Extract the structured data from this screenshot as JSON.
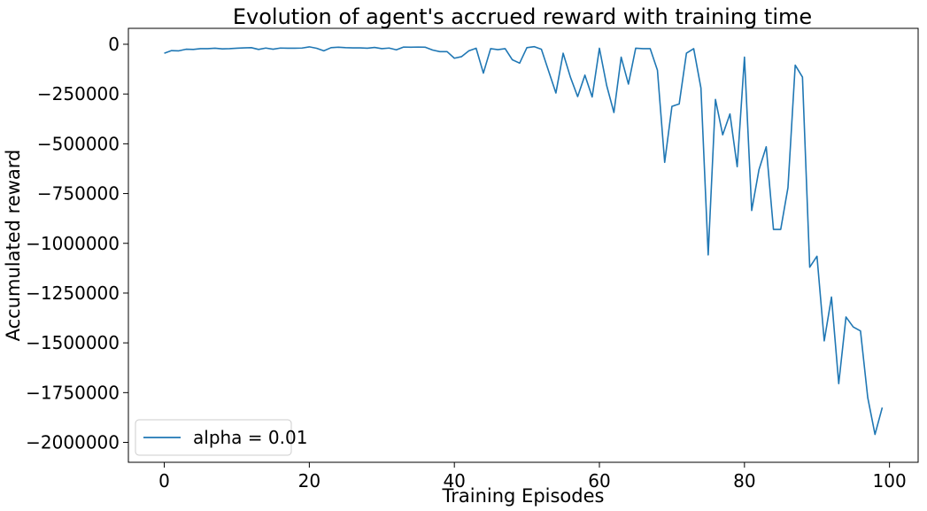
{
  "chart_data": {
    "type": "line",
    "title": "Evolution of agent's accrued reward with training time",
    "xlabel": "Training Episodes",
    "ylabel": "Accumulated reward",
    "xlim": [
      -4.95,
      103.95
    ],
    "ylim": [
      -2100000,
      80000
    ],
    "xticks": [
      0,
      20,
      40,
      60,
      80,
      100
    ],
    "xtick_labels": [
      "0",
      "20",
      "40",
      "60",
      "80",
      "100"
    ],
    "yticks": [
      0,
      -250000,
      -500000,
      -750000,
      -1000000,
      -1250000,
      -1500000,
      -1750000,
      -2000000
    ],
    "ytick_labels": [
      "0",
      "−250000",
      "−500000",
      "−750000",
      "−1000000",
      "−1250000",
      "−1500000",
      "−1750000",
      "−2000000"
    ],
    "grid": false,
    "legend": {
      "position": "lower-left",
      "entries": [
        "alpha = 0.01"
      ]
    },
    "series": [
      {
        "name": "alpha = 0.01",
        "color": "#1f77b4",
        "x": [
          0,
          1,
          2,
          3,
          4,
          5,
          6,
          7,
          8,
          9,
          10,
          11,
          12,
          13,
          14,
          15,
          16,
          17,
          18,
          19,
          20,
          21,
          22,
          23,
          24,
          25,
          26,
          27,
          28,
          29,
          30,
          31,
          32,
          33,
          34,
          35,
          36,
          37,
          38,
          39,
          40,
          41,
          42,
          43,
          44,
          45,
          46,
          47,
          48,
          49,
          50,
          51,
          52,
          53,
          54,
          55,
          56,
          57,
          58,
          59,
          60,
          61,
          62,
          63,
          64,
          65,
          66,
          67,
          68,
          69,
          70,
          71,
          72,
          73,
          74,
          75,
          76,
          77,
          78,
          79,
          80,
          81,
          82,
          83,
          84,
          85,
          86,
          87,
          88,
          89,
          90,
          91,
          92,
          93,
          94,
          95,
          96,
          97,
          98,
          99
        ],
        "values": [
          -45000,
          -32000,
          -33000,
          -25000,
          -26000,
          -22000,
          -22000,
          -20000,
          -23000,
          -22000,
          -20000,
          -18000,
          -17000,
          -26000,
          -19000,
          -25000,
          -19000,
          -20000,
          -20000,
          -19000,
          -13000,
          -20000,
          -33000,
          -17000,
          -15000,
          -17000,
          -18000,
          -18000,
          -20000,
          -16000,
          -22000,
          -19000,
          -28000,
          -14000,
          -15000,
          -14000,
          -15000,
          -29000,
          -37000,
          -37000,
          -70000,
          -62000,
          -33000,
          -20000,
          -145000,
          -22000,
          -27000,
          -22000,
          -78000,
          -95000,
          -17000,
          -12000,
          -25000,
          -135000,
          -245000,
          -45000,
          -165000,
          -263000,
          -155000,
          -265000,
          -20000,
          -207000,
          -343000,
          -65000,
          -200000,
          -20000,
          -22000,
          -22000,
          -130000,
          -593000,
          -312000,
          -300000,
          -45000,
          -22000,
          -220000,
          -1058000,
          -277000,
          -455000,
          -350000,
          -615000,
          -65000,
          -835000,
          -630000,
          -515000,
          -930000,
          -930000,
          -720000,
          -105000,
          -165000,
          -1120000,
          -1065000,
          -1490000,
          -1270000,
          -1705000,
          -1370000,
          -1420000,
          -1440000,
          -1775000,
          -1960000,
          -1825000
        ]
      }
    ]
  }
}
